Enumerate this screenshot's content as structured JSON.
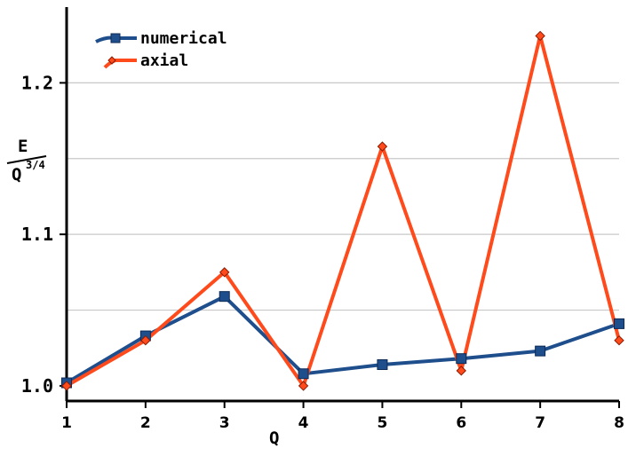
{
  "chart_data": {
    "type": "line",
    "title": "",
    "xlabel": "Q",
    "ylabel": {
      "numerator": "E",
      "denominator": "Q",
      "exponent": "3/4"
    },
    "x": [
      1,
      2,
      3,
      4,
      5,
      6,
      7,
      8
    ],
    "xlim": [
      1,
      8
    ],
    "ylim": [
      0.99,
      1.25
    ],
    "yticks": [
      1.0,
      1.1,
      1.2
    ],
    "ytick_labels": [
      "1.0",
      "1.1",
      "1.2"
    ],
    "ygrid": [
      1.05,
      1.1,
      1.15,
      1.2
    ],
    "grid": true,
    "legend": "top-left",
    "series": [
      {
        "name": "numerical",
        "color": "#1f4e8c",
        "marker": "square",
        "values": [
          1.002,
          1.033,
          1.059,
          1.008,
          1.014,
          1.018,
          1.023,
          1.041
        ]
      },
      {
        "name": "axial",
        "color": "#ff4a1c",
        "marker": "diamond",
        "values": [
          1.0,
          1.03,
          1.075,
          1.0,
          1.158,
          1.01,
          1.231,
          1.03
        ]
      }
    ]
  }
}
